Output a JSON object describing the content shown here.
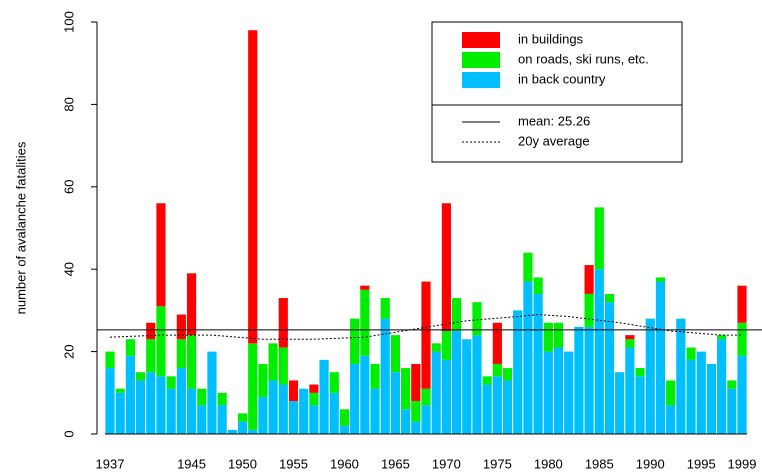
{
  "chart_data": {
    "type": "stacked_bar",
    "y_label": "number of avalanche fatalities",
    "categories": [
      1937,
      null,
      null,
      null,
      null,
      null,
      null,
      null,
      1945,
      null,
      null,
      null,
      null,
      1950,
      null,
      null,
      null,
      null,
      1955,
      null,
      null,
      null,
      null,
      1960,
      null,
      null,
      null,
      null,
      1965,
      null,
      null,
      null,
      null,
      1970,
      null,
      null,
      null,
      null,
      1975,
      null,
      null,
      null,
      null,
      1980,
      null,
      null,
      null,
      null,
      1985,
      null,
      null,
      null,
      null,
      1990,
      null,
      null,
      null,
      null,
      1995,
      null,
      null,
      null,
      1999
    ],
    "series": [
      {
        "name": "in buildings",
        "color": "#ff0000",
        "values": [
          0,
          0,
          0,
          0,
          4,
          25,
          0,
          6,
          15,
          0,
          0,
          0,
          0,
          0,
          76,
          0,
          0,
          12,
          5,
          0,
          2,
          0,
          0,
          0,
          0,
          1,
          0,
          0,
          0,
          0,
          9,
          26,
          0,
          31,
          0,
          0,
          0,
          0,
          10,
          0,
          0,
          0,
          0,
          0,
          0,
          0,
          0,
          7,
          0,
          0,
          0,
          1,
          0,
          0,
          0,
          0,
          0,
          0,
          0,
          0,
          0,
          0,
          9
        ]
      },
      {
        "name": "on roads, ski runs, etc.",
        "color": "#00ee00",
        "values": [
          4,
          1,
          4,
          2,
          8,
          17,
          3,
          7,
          13,
          4,
          0,
          3,
          0,
          2,
          21,
          8,
          9,
          9,
          0,
          0,
          3,
          0,
          5,
          4,
          11,
          16,
          6,
          5,
          9,
          10,
          5,
          4,
          2,
          7,
          8,
          0,
          8,
          2,
          3,
          3,
          0,
          7,
          4,
          7,
          6,
          0,
          0,
          8,
          15,
          2,
          0,
          2,
          2,
          0,
          1,
          6,
          0,
          3,
          0,
          0,
          1,
          2,
          8
        ]
      },
      {
        "name": "in back country",
        "color": "#00bfff",
        "values": [
          16,
          10,
          19,
          13,
          15,
          14,
          11,
          16,
          11,
          7,
          20,
          7,
          1,
          3,
          1,
          9,
          13,
          12,
          8,
          11,
          7,
          18,
          10,
          2,
          17,
          19,
          11,
          28,
          15,
          6,
          3,
          7,
          20,
          18,
          25,
          23,
          24,
          12,
          14,
          13,
          30,
          37,
          34,
          20,
          21,
          20,
          26,
          26,
          40,
          32,
          15,
          21,
          14,
          28,
          37,
          7,
          28,
          18,
          20,
          17,
          23,
          11,
          19
        ]
      }
    ],
    "mean": {
      "label": "mean: 25.26",
      "value": 25.26
    },
    "moving_average": {
      "name": "20y average",
      "x": [
        1937,
        1942,
        1947,
        1952,
        1957,
        1962,
        1967,
        1972,
        1977,
        1979,
        1982,
        1987,
        1992,
        1997,
        1999
      ],
      "values": [
        23.5,
        24,
        24,
        23,
        23,
        23.5,
        25.5,
        27.5,
        28.5,
        29,
        28.5,
        27,
        25,
        24,
        24
      ]
    },
    "ylim": [
      0,
      100
    ],
    "yticks": [
      0,
      20,
      40,
      60,
      80,
      100
    ]
  }
}
